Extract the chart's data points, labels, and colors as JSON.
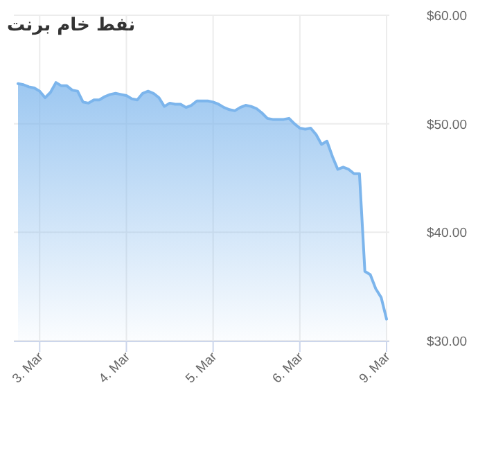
{
  "chart_data": {
    "type": "area",
    "title": "نفط خام برنت",
    "categories": [
      null,
      null,
      null,
      null,
      "3. Mar",
      null,
      null,
      null,
      null,
      null,
      null,
      null,
      null,
      null,
      null,
      null,
      null,
      null,
      null,
      null,
      "4. Mar",
      null,
      null,
      null,
      null,
      null,
      null,
      null,
      null,
      null,
      null,
      null,
      null,
      null,
      null,
      null,
      "5. Mar",
      null,
      null,
      null,
      null,
      null,
      null,
      null,
      null,
      null,
      null,
      null,
      null,
      null,
      null,
      null,
      "6. Mar",
      null,
      null,
      null,
      null,
      null,
      null,
      null,
      null,
      null,
      null,
      null,
      null,
      null,
      null,
      null,
      "9. Mar"
    ],
    "series": [
      {
        "color": "#7cb5ec",
        "values": [
          53.7,
          53.6,
          53.4,
          53.3,
          53.0,
          52.4,
          52.9,
          53.8,
          53.5,
          53.5,
          53.1,
          53.0,
          52.0,
          51.9,
          52.2,
          52.2,
          52.5,
          52.7,
          52.8,
          52.7,
          52.6,
          52.3,
          52.2,
          52.8,
          53.0,
          52.8,
          52.4,
          51.6,
          51.9,
          51.8,
          51.8,
          51.5,
          51.7,
          52.1,
          52.1,
          52.1,
          52.0,
          51.8,
          51.5,
          51.3,
          51.2,
          51.5,
          51.7,
          51.6,
          51.4,
          51.0,
          50.5,
          50.4,
          50.4,
          50.4,
          50.5,
          50.0,
          49.6,
          49.5,
          49.6,
          49.0,
          48.1,
          48.4,
          47.0,
          45.8,
          46.0,
          45.8,
          45.4,
          45.4,
          36.4,
          36.1,
          34.8,
          34.0,
          32.0
        ]
      }
    ],
    "ylim": [
      30,
      60
    ],
    "yticks": [
      {
        "value": 30,
        "label": "$30.00"
      },
      {
        "value": 40,
        "label": "$40.00"
      },
      {
        "value": 50,
        "label": "$50.00"
      },
      {
        "value": 60,
        "label": "$60.00"
      }
    ],
    "grid": true
  }
}
